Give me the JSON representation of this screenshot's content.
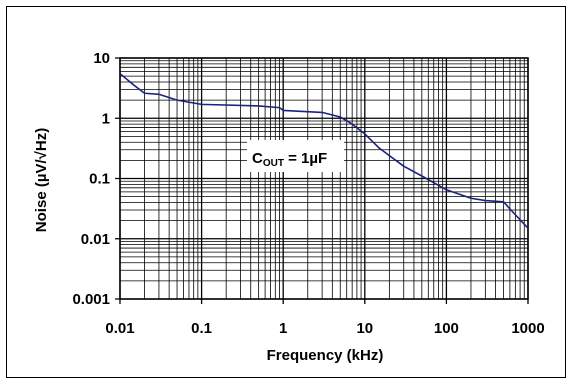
{
  "chart_data": {
    "type": "line",
    "title": "",
    "xlabel": "Frequency (kHz)",
    "ylabel": "Noise (µV/√Hz)",
    "xscale": "log",
    "yscale": "log",
    "xlim": [
      0.01,
      1000
    ],
    "ylim": [
      0.001,
      10
    ],
    "x_tick_labels": [
      "0.01",
      "0.1",
      "1",
      "10",
      "100",
      "1000"
    ],
    "y_tick_labels": [
      "10",
      "1",
      "0.1",
      "0.01",
      "0.001"
    ],
    "grid": true,
    "line_color": "#1a237e",
    "annotation": {
      "main": "C",
      "sub": "OUT",
      "rest": " = 1µF"
    },
    "series": [
      {
        "x": [
          0.01,
          0.015,
          0.02,
          0.03,
          0.05,
          0.1,
          0.5,
          0.9,
          1.0,
          3,
          5,
          7,
          10,
          15,
          20,
          30,
          50,
          100,
          200,
          300,
          500,
          700,
          1000
        ],
        "y": [
          5.5,
          3.5,
          2.6,
          2.5,
          2.0,
          1.7,
          1.6,
          1.5,
          1.35,
          1.25,
          1.05,
          0.8,
          0.55,
          0.32,
          0.24,
          0.16,
          0.11,
          0.065,
          0.047,
          0.043,
          0.041,
          0.025,
          0.015
        ]
      }
    ]
  }
}
